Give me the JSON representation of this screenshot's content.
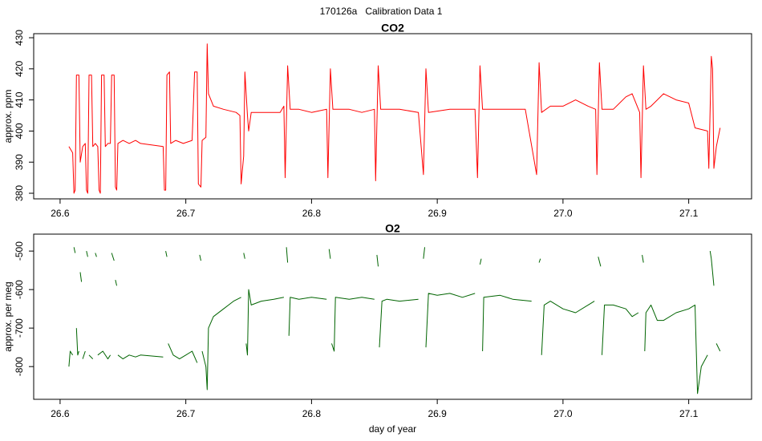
{
  "title": "170126a   Calibration Data 1",
  "chart_data": [
    {
      "type": "line",
      "title": "CO2",
      "ylabel": "approx. ppm",
      "color": "#ff0000",
      "xlim": [
        26.579,
        27.15
      ],
      "ylim": [
        378.2,
        431.3
      ],
      "xticks": [
        26.6,
        26.7,
        26.8,
        26.9,
        {
          "value": 27,
          "label": "27.0"
        },
        27.1
      ],
      "yticks": [
        380,
        390,
        400,
        410,
        420,
        430
      ],
      "x": [
        26.607,
        26.61,
        26.611,
        26.612,
        26.613,
        26.615,
        26.616,
        26.618,
        26.62,
        26.621,
        26.622,
        26.623,
        26.625,
        26.626,
        26.628,
        26.63,
        26.631,
        26.632,
        26.633,
        26.635,
        26.636,
        26.638,
        26.64,
        26.641,
        26.643,
        26.644,
        26.645,
        26.646,
        26.65,
        26.655,
        26.66,
        26.664,
        26.682,
        26.683,
        26.684,
        26.685,
        26.687,
        26.688,
        26.692,
        26.698,
        26.705,
        26.707,
        26.709,
        26.71,
        26.712,
        26.713,
        26.716,
        26.717,
        26.718,
        26.722,
        26.73,
        26.74,
        26.743,
        26.744,
        26.746,
        26.747,
        26.749,
        26.75,
        26.752,
        26.76,
        26.775,
        26.778,
        26.779,
        26.781,
        26.783,
        26.79,
        26.8,
        26.812,
        26.813,
        26.815,
        26.817,
        26.83,
        26.84,
        26.85,
        26.851,
        26.853,
        26.855,
        26.87,
        26.885,
        26.889,
        26.891,
        26.893,
        26.91,
        26.93,
        26.932,
        26.934,
        26.936,
        26.95,
        26.97,
        26.979,
        26.981,
        26.983,
        26.99,
        27.0,
        27.01,
        27.02,
        27.026,
        27.027,
        27.029,
        27.031,
        27.04,
        27.05,
        27.055,
        27.061,
        27.062,
        27.064,
        27.066,
        27.07,
        27.08,
        27.09,
        27.1,
        27.105,
        27.115,
        27.116,
        27.118,
        27.119,
        27.12,
        27.122,
        27.125
      ],
      "values": [
        395,
        393,
        380,
        381,
        418,
        418,
        390,
        395,
        396,
        381,
        380,
        418,
        418,
        395,
        396,
        395,
        381,
        380,
        418,
        418,
        395,
        396,
        396,
        418,
        418,
        382,
        381,
        396,
        397,
        396,
        397,
        396,
        395,
        381,
        381,
        418,
        419,
        396,
        397,
        396,
        397,
        419,
        419,
        383,
        382,
        397,
        398,
        428,
        412,
        408,
        407,
        406,
        405,
        383,
        392,
        419,
        405,
        400,
        406,
        406,
        406,
        408,
        385,
        421,
        407,
        407,
        406,
        407,
        385,
        420,
        407,
        407,
        406,
        407,
        384,
        421,
        407,
        407,
        406,
        386,
        420,
        406,
        407,
        407,
        385,
        421,
        407,
        407,
        407,
        386,
        422,
        406,
        408,
        408,
        410,
        408,
        407,
        386,
        422,
        407,
        407,
        411,
        412,
        406,
        385,
        421,
        407,
        408,
        412,
        410,
        409,
        401,
        400,
        388,
        424,
        420,
        388,
        395,
        401
      ]
    },
    {
      "type": "line",
      "title": "O2",
      "ylabel": "approx. per meg",
      "xlabel": "day of year",
      "color": "#006400",
      "xlim": [
        26.579,
        27.15
      ],
      "ylim": [
        -885,
        -456
      ],
      "xticks": [
        26.6,
        26.7,
        26.8,
        26.9,
        {
          "value": 27,
          "label": "27.0"
        },
        27.1
      ],
      "yticks": [
        -800,
        -700,
        -600,
        -500
      ],
      "x": [
        26.607,
        26.608,
        26.61,
        null,
        26.611,
        26.612,
        null,
        26.613,
        26.614,
        26.615,
        null,
        26.616,
        26.617,
        null,
        26.618,
        26.62,
        null,
        26.621,
        26.622,
        null,
        26.623,
        26.626,
        null,
        26.628,
        26.629,
        null,
        26.63,
        26.634,
        26.638,
        26.64,
        null,
        26.641,
        26.643,
        null,
        26.644,
        26.645,
        null,
        26.646,
        26.65,
        26.655,
        26.66,
        26.664,
        26.682,
        null,
        26.684,
        26.685,
        null,
        26.686,
        26.69,
        26.695,
        26.7,
        26.705,
        26.709,
        null,
        26.711,
        26.712,
        null,
        26.713,
        26.716,
        26.717,
        26.718,
        26.722,
        26.73,
        26.738,
        26.744,
        null,
        26.746,
        26.747,
        null,
        26.748,
        26.749,
        26.75,
        26.752,
        26.76,
        26.77,
        26.778,
        null,
        26.78,
        26.781,
        null,
        26.782,
        26.783,
        26.79,
        26.8,
        26.812,
        null,
        26.814,
        26.815,
        null,
        26.816,
        26.818,
        26.819,
        26.83,
        26.84,
        26.85,
        null,
        26.852,
        26.853,
        null,
        26.854,
        26.856,
        26.86,
        26.87,
        26.885,
        null,
        26.889,
        26.89,
        null,
        26.891,
        26.893,
        26.9,
        26.91,
        26.92,
        26.93,
        null,
        26.934,
        26.935,
        null,
        26.936,
        26.937,
        26.95,
        26.96,
        26.975,
        null,
        26.981,
        26.982,
        null,
        26.983,
        26.985,
        26.99,
        27.0,
        27.01,
        27.02,
        27.025,
        null,
        27.028,
        27.03,
        null,
        27.031,
        27.033,
        27.04,
        27.05,
        27.055,
        27.06,
        null,
        27.063,
        27.064,
        null,
        27.065,
        27.066,
        27.07,
        27.075,
        27.08,
        27.09,
        27.1,
        27.105,
        27.107,
        27.11,
        27.115,
        null,
        27.117,
        27.118,
        27.12,
        null,
        27.122,
        27.125
      ],
      "values": [
        -800,
        -760,
        -770,
        null,
        -490,
        -505,
        null,
        -700,
        -770,
        -760,
        null,
        -555,
        -580,
        null,
        -780,
        -760,
        null,
        -500,
        -515,
        null,
        -770,
        -780,
        null,
        -505,
        -515,
        null,
        -770,
        -760,
        -780,
        -770,
        null,
        -505,
        -525,
        null,
        -575,
        -590,
        null,
        -770,
        -780,
        -770,
        -775,
        -770,
        -775,
        null,
        -500,
        -515,
        null,
        -740,
        -770,
        -780,
        -770,
        -760,
        -790,
        null,
        -510,
        -525,
        null,
        -760,
        -800,
        -860,
        -700,
        -670,
        -650,
        -630,
        -620,
        null,
        -505,
        -520,
        null,
        -740,
        -770,
        -600,
        -640,
        -630,
        -625,
        -620,
        null,
        -490,
        -530,
        null,
        -720,
        -620,
        -625,
        -620,
        -625,
        null,
        -495,
        -520,
        null,
        -740,
        -760,
        -620,
        -625,
        -620,
        -625,
        null,
        -510,
        -540,
        null,
        -750,
        -630,
        -625,
        -630,
        -625,
        null,
        -520,
        -490,
        null,
        -750,
        -610,
        -615,
        -610,
        -620,
        -610,
        null,
        -535,
        -520,
        null,
        -760,
        -620,
        -615,
        -625,
        -630,
        null,
        -530,
        -520,
        null,
        -770,
        -640,
        -630,
        -650,
        -660,
        -640,
        -630,
        null,
        -515,
        -540,
        null,
        -770,
        -640,
        -640,
        -650,
        -670,
        -660,
        null,
        -510,
        -530,
        null,
        -760,
        -660,
        -640,
        -680,
        -680,
        -660,
        -650,
        -640,
        -870,
        -800,
        -770,
        null,
        -500,
        -520,
        -590,
        null,
        -740,
        -760
      ]
    }
  ]
}
